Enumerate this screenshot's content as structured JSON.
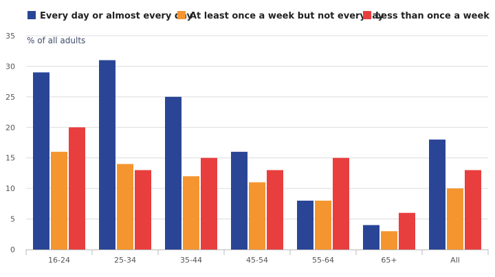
{
  "chart_data": {
    "type": "bar",
    "ylabel": "% of all adults",
    "categories": [
      "16-24",
      "25-34",
      "35-44",
      "45-54",
      "55-64",
      "65+",
      "All"
    ],
    "series": [
      {
        "name": "Every day or almost every day",
        "color": "#2a4596",
        "values": [
          29,
          31,
          25,
          16,
          8,
          4,
          18
        ]
      },
      {
        "name": "At least once a week but not everyday",
        "color": "#f4952f",
        "values": [
          16,
          14,
          12,
          11,
          8,
          3,
          10
        ]
      },
      {
        "name": "Less than once a week",
        "color": "#e93e3e",
        "values": [
          20,
          13,
          15,
          13,
          15,
          6,
          13
        ]
      }
    ],
    "ylim": [
      0,
      35
    ],
    "yticks": [
      0,
      5,
      10,
      15,
      20,
      25,
      30,
      35
    ],
    "grid": true,
    "legend_position": "top-left"
  }
}
